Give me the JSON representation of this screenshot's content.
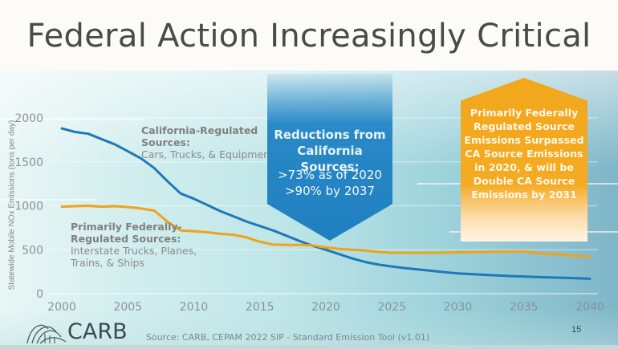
{
  "slide": {
    "title": "Federal Action Increasingly Critical",
    "page_number": "15",
    "source": "Source: CARB, CEPAM 2022 SIP - Standard Emission Tool (v1.01)",
    "logo_text": "CARB"
  },
  "annotations": {
    "ca_label_bold": "California-Regulated Sources:",
    "ca_label_bold_line1": "California-Regulated",
    "ca_label_bold_line2": "Sources:",
    "ca_label_detail": "Cars, Trucks, & Equipment",
    "fed_label_bold_line1": "Primarily Federally-",
    "fed_label_bold_line2": "Regulated Sources:",
    "fed_label_detail_line1": "Interstate Trucks, Planes,",
    "fed_label_detail_line2": "Trains, & Ships"
  },
  "blue_callout": {
    "heading_line1": "Reductions from",
    "heading_line2": "California Sources:",
    "stat_line1": ">73% as of 2020",
    "stat_line2": ">90% by 2037",
    "color": "#1f7fc1"
  },
  "orange_callout": {
    "lines": [
      "Primarily Federally",
      "Regulated Source",
      "Emissions Surpassed",
      "CA Source Emissions",
      "in 2020, & will be",
      "Double CA Source",
      "Emissions by 2031"
    ],
    "color": "#f2a71c"
  },
  "chart_data": {
    "type": "line",
    "title": "",
    "xlabel": "",
    "ylabel": "Statewide Mobile NOx Emissions (tons per day)",
    "xlim": [
      2000,
      2040
    ],
    "ylim": [
      0,
      2000
    ],
    "x_ticks": [
      "2000",
      "2005",
      "2010",
      "2015",
      "2020",
      "2025",
      "2030",
      "2035",
      "2040"
    ],
    "y_ticks": [
      "0",
      "500",
      "1000",
      "1500",
      "2000"
    ],
    "grid": true,
    "legend": "none (inline annotations)",
    "series": [
      {
        "name": "California-Regulated Sources",
        "color": "#1f78b8",
        "x": [
          2000,
          2001,
          2002,
          2003,
          2004,
          2005,
          2006,
          2007,
          2008,
          2009,
          2010,
          2011,
          2012,
          2013,
          2014,
          2015,
          2016,
          2017,
          2018,
          2019,
          2020,
          2021,
          2022,
          2023,
          2024,
          2025,
          2026,
          2027,
          2028,
          2029,
          2030,
          2032,
          2034,
          2036,
          2038,
          2040
        ],
        "values": [
          1880,
          1840,
          1820,
          1760,
          1700,
          1620,
          1540,
          1430,
          1280,
          1140,
          1080,
          1010,
          940,
          880,
          820,
          770,
          720,
          660,
          600,
          545,
          500,
          450,
          400,
          360,
          330,
          310,
          290,
          275,
          260,
          245,
          230,
          215,
          200,
          190,
          180,
          170
        ]
      },
      {
        "name": "Primarily Federally-Regulated Sources",
        "color": "#f0a21a",
        "x": [
          2000,
          2001,
          2002,
          2003,
          2004,
          2005,
          2006,
          2007,
          2008,
          2009,
          2010,
          2011,
          2012,
          2013,
          2014,
          2015,
          2016,
          2017,
          2018,
          2019,
          2020,
          2021,
          2022,
          2023,
          2024,
          2025,
          2026,
          2028,
          2030,
          2032,
          2034,
          2035,
          2036,
          2038,
          2040
        ],
        "values": [
          990,
          995,
          1000,
          990,
          995,
          985,
          970,
          945,
          820,
          720,
          710,
          700,
          680,
          670,
          640,
          590,
          560,
          555,
          555,
          550,
          525,
          510,
          500,
          490,
          475,
          465,
          465,
          465,
          470,
          475,
          480,
          480,
          465,
          440,
          420
        ]
      }
    ]
  }
}
